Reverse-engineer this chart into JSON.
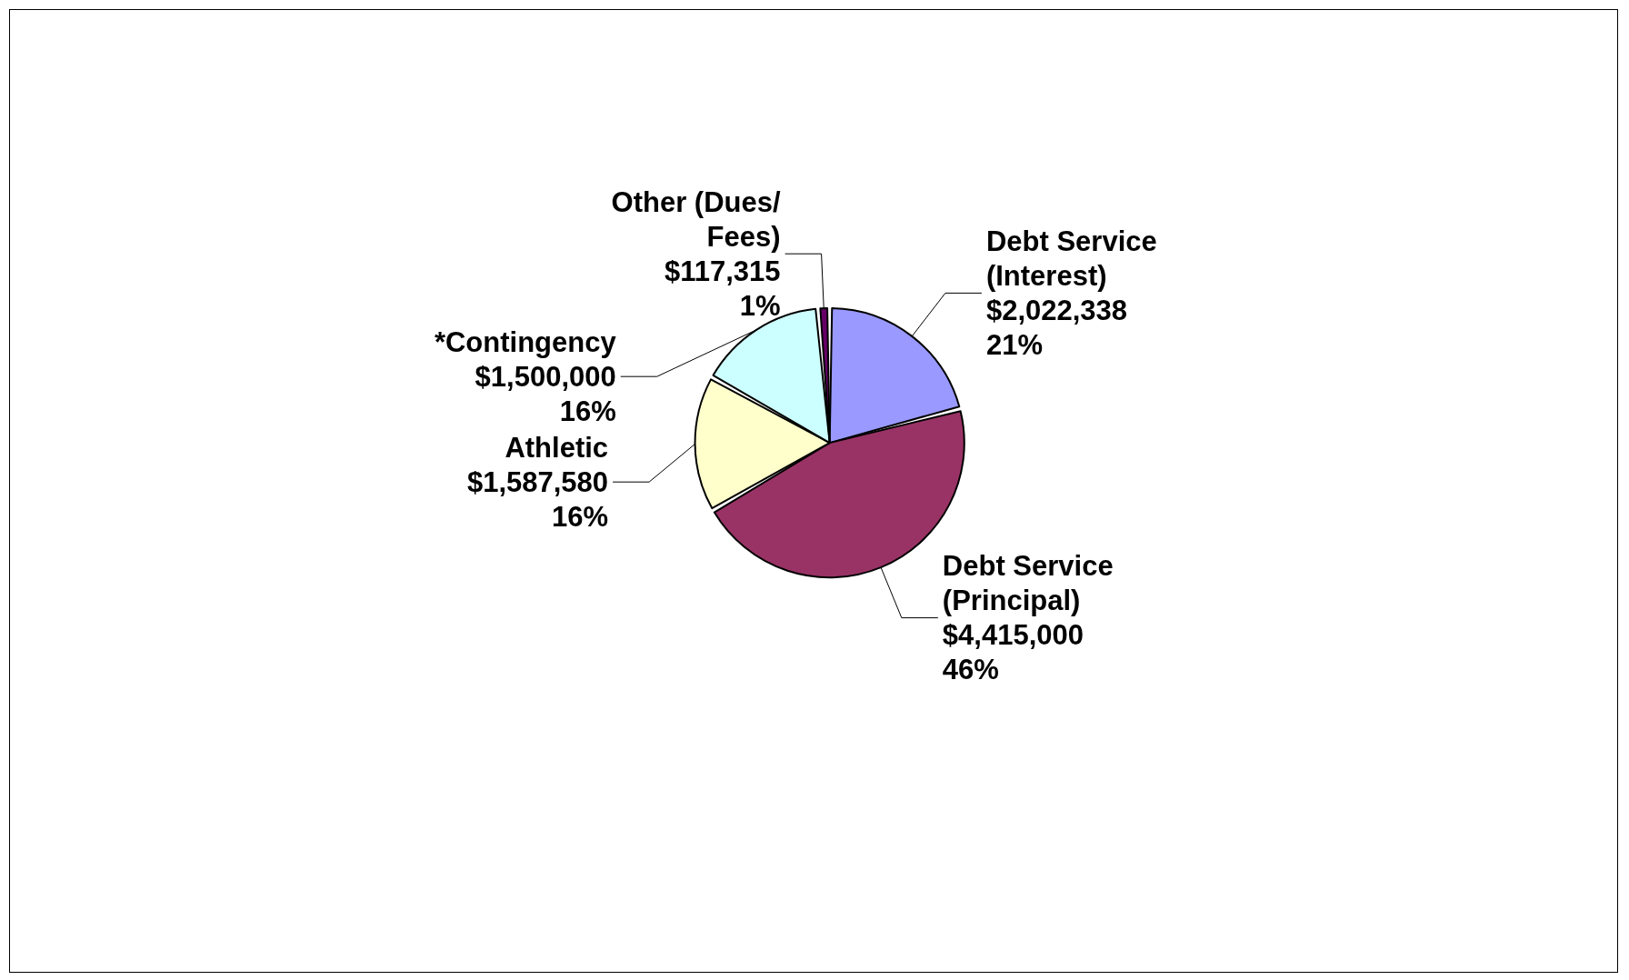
{
  "chart_data": {
    "type": "pie",
    "categories": [
      "Debt Service (Interest)",
      "Debt Service (Principal)",
      "Athletic",
      "*Contingency",
      "Other (Dues/Fees)"
    ],
    "values": [
      2022338,
      4415000,
      1587580,
      1500000,
      117315
    ],
    "value_labels": [
      "$2,022,338\n21%",
      "$4,415,000\n46%",
      "$1,587,580\n16%",
      "$1,500,000\n16%",
      "$117,315\n1%"
    ],
    "colors": [
      "#9999ff",
      "#993366",
      "#ffffcc",
      "#ccffff",
      "#660066"
    ],
    "legend": false
  }
}
